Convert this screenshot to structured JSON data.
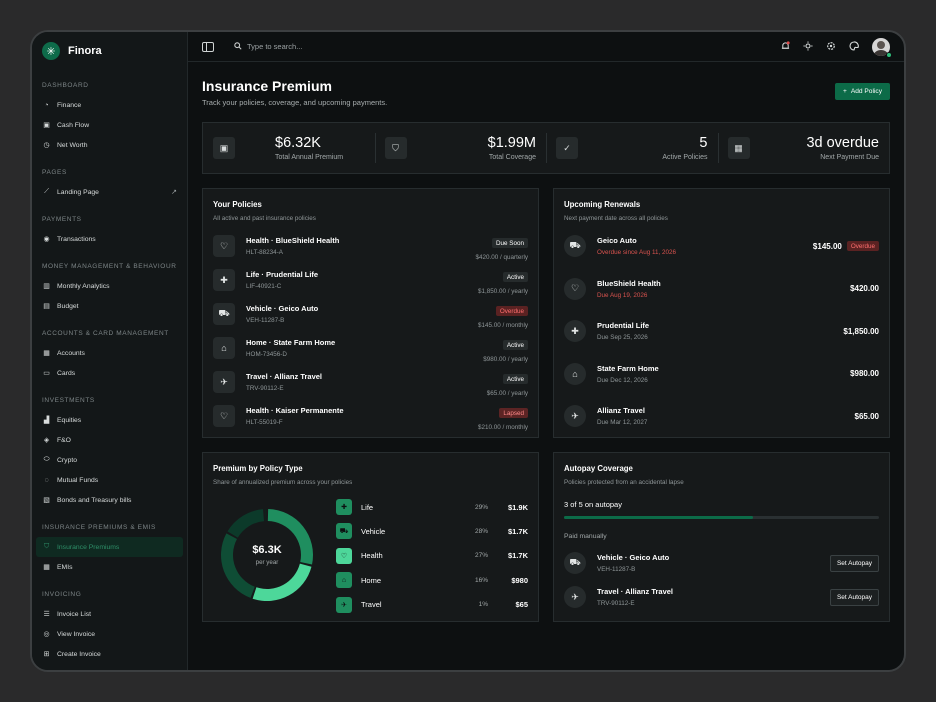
{
  "brand": {
    "name": "Finora",
    "logo_icon": "asterisk-icon"
  },
  "sidebar": {
    "sections": [
      {
        "title": "DASHBOARD",
        "items": [
          {
            "label": "Finance",
            "icon": "gauge-icon"
          },
          {
            "label": "Cash Flow",
            "icon": "wallet-icon"
          },
          {
            "label": "Net Worth",
            "icon": "clock-icon"
          }
        ]
      },
      {
        "title": "PAGES",
        "items": [
          {
            "label": "Landing Page",
            "icon": "chart-line-icon",
            "external": "↗"
          }
        ]
      },
      {
        "title": "PAYMENTS",
        "items": [
          {
            "label": "Transactions",
            "icon": "coin-icon"
          }
        ]
      },
      {
        "title": "MONEY MANAGEMENT & BEHAVIOUR",
        "items": [
          {
            "label": "Monthly Analytics",
            "icon": "bar-chart-icon"
          },
          {
            "label": "Budget",
            "icon": "budget-icon"
          }
        ]
      },
      {
        "title": "ACCOUNTS & CARD MANAGEMENT",
        "items": [
          {
            "label": "Accounts",
            "icon": "accounts-icon"
          },
          {
            "label": "Cards",
            "icon": "card-icon"
          }
        ]
      },
      {
        "title": "INVESTMENTS",
        "items": [
          {
            "label": "Equities",
            "icon": "equities-icon"
          },
          {
            "label": "F&O",
            "icon": "fo-icon"
          },
          {
            "label": "Crypto",
            "icon": "crypto-icon"
          },
          {
            "label": "Mutual Funds",
            "icon": "funds-icon"
          },
          {
            "label": "Bonds and Treasury bills",
            "icon": "bonds-icon"
          }
        ]
      },
      {
        "title": "INSURANCE PREMIUMS & EMIS",
        "items": [
          {
            "label": "Insurance Premiums",
            "icon": "shield-check-icon",
            "active": true
          },
          {
            "label": "EMIs",
            "icon": "calendar-icon"
          }
        ]
      },
      {
        "title": "INVOICING",
        "items": [
          {
            "label": "Invoice List",
            "icon": "list-icon"
          },
          {
            "label": "View Invoice",
            "icon": "eye-icon"
          },
          {
            "label": "Create Invoice",
            "icon": "plus-doc-icon"
          }
        ]
      }
    ]
  },
  "topbar": {
    "search_placeholder": "Type to search..."
  },
  "page": {
    "title": "Insurance Premium",
    "subtitle": "Track your policies, coverage, and upcoming payments.",
    "add_button": "Add Policy"
  },
  "stats": [
    {
      "value": "$6.32K",
      "label": "Total Annual Premium",
      "icon": "wallet-icon"
    },
    {
      "value": "$1.99M",
      "label": "Total Coverage",
      "icon": "shield-check-icon"
    },
    {
      "value": "5",
      "label": "Active Policies",
      "icon": "document-check-icon"
    },
    {
      "value": "3d overdue",
      "label": "Next Payment Due",
      "icon": "calendar-icon"
    }
  ],
  "policies": {
    "title": "Your Policies",
    "subtitle": "All active and past insurance policies",
    "items": [
      {
        "name": "Health · BlueShield Health",
        "id": "HLT-88234-A",
        "status": "Due Soon",
        "amount": "$420.00 / quarterly",
        "icon": "heart-icon",
        "tone": "neutral"
      },
      {
        "name": "Life · Prudential Life",
        "id": "LIF-40921-C",
        "status": "Active",
        "amount": "$1,850.00 / yearly",
        "icon": "medical-bag-icon",
        "tone": "neutral"
      },
      {
        "name": "Vehicle · Geico Auto",
        "id": "VEH-11287-B",
        "status": "Overdue",
        "amount": "$145.00 / monthly",
        "icon": "car-icon",
        "tone": "red"
      },
      {
        "name": "Home · State Farm Home",
        "id": "HOM-73456-D",
        "status": "Active",
        "amount": "$980.00 / yearly",
        "icon": "home-icon",
        "tone": "neutral"
      },
      {
        "name": "Travel · Allianz Travel",
        "id": "TRV-90112-E",
        "status": "Active",
        "amount": "$65.00 / yearly",
        "icon": "plane-icon",
        "tone": "neutral"
      },
      {
        "name": "Health · Kaiser Permanente",
        "id": "HLT-55019-F",
        "status": "Lapsed",
        "amount": "$210.00 / monthly",
        "icon": "heart-icon",
        "tone": "lapsed"
      }
    ]
  },
  "renewals": {
    "title": "Upcoming Renewals",
    "subtitle": "Next payment date across all policies",
    "items": [
      {
        "name": "Geico Auto",
        "date": "Overdue since Aug 11, 2026",
        "amount": "$145.00",
        "badge": "Overdue",
        "icon": "car-icon",
        "red": true
      },
      {
        "name": "BlueShield Health",
        "date": "Due Aug 19, 2026",
        "amount": "$420.00",
        "badge": "",
        "icon": "heart-icon",
        "red": true
      },
      {
        "name": "Prudential Life",
        "date": "Due Sep 25, 2026",
        "amount": "$1,850.00",
        "badge": "",
        "icon": "medical-bag-icon",
        "red": false
      },
      {
        "name": "State Farm Home",
        "date": "Due Dec 12, 2026",
        "amount": "$980.00",
        "badge": "",
        "icon": "home-icon",
        "red": false
      },
      {
        "name": "Allianz Travel",
        "date": "Due Mar 12, 2027",
        "amount": "$65.00",
        "badge": "",
        "icon": "plane-icon",
        "red": false
      }
    ]
  },
  "premium_by_type": {
    "title": "Premium by Policy Type",
    "subtitle": "Share of annualized premium across your policies",
    "center_value": "$6.3K",
    "center_label": "per year"
  },
  "chart_data": {
    "type": "pie",
    "categories": [
      "Life",
      "Vehicle",
      "Health",
      "Home",
      "Travel"
    ],
    "values": [
      29,
      28,
      27,
      16,
      1
    ],
    "display_values": [
      "$1.9K",
      "$1.7K",
      "$1.7K",
      "$980",
      "$65"
    ],
    "percent_labels": [
      "29%",
      "28%",
      "27%",
      "16%",
      "1%"
    ],
    "colors": [
      "#1f8e5f",
      "#0f4d35",
      "#4dd79a",
      "#0c3a2a",
      "#09281d"
    ],
    "icons": [
      "medical-bag-icon",
      "car-icon",
      "heart-icon",
      "home-icon",
      "plane-icon"
    ]
  },
  "autopay": {
    "title": "Autopay Coverage",
    "subtitle": "Policies protected from an accidental lapse",
    "progress_label": "3 of 5 on autopay",
    "progress_fraction": 0.6,
    "paid_label": "Paid manually",
    "items": [
      {
        "name": "Vehicle · Geico Auto",
        "id": "VEH-11287-B",
        "button": "Set Autopay",
        "icon": "car-icon"
      },
      {
        "name": "Travel · Allianz Travel",
        "id": "TRV-90112-E",
        "button": "Set Autopay",
        "icon": "plane-icon"
      }
    ]
  }
}
